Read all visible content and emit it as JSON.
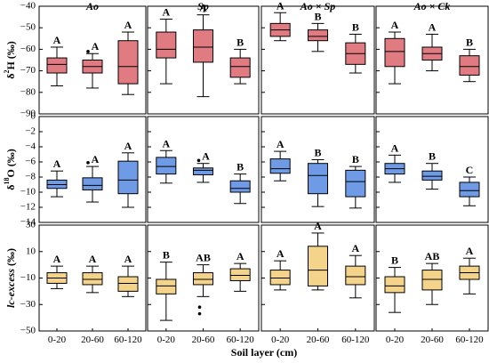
{
  "chart_data": {
    "type": "boxplot",
    "columns": [
      {
        "title": "Ao",
        "title_parts": [
          {
            "t": "Ao",
            "it": true
          }
        ]
      },
      {
        "title": "Sp",
        "title_parts": [
          {
            "t": "Sp",
            "it": true
          }
        ]
      },
      {
        "title": "Ao × Sp",
        "title_parts": [
          {
            "t": "Ao",
            "it": true
          },
          {
            "t": " × ",
            "it": false
          },
          {
            "t": "Sp",
            "it": true
          }
        ]
      },
      {
        "title": "Ao × Ck",
        "title_parts": [
          {
            "t": "Ao",
            "it": true
          },
          {
            "t": " × ",
            "it": false
          },
          {
            "t": "Ck",
            "it": true
          }
        ]
      }
    ],
    "categories": [
      "0-20",
      "20-60",
      "60-120"
    ],
    "xlabel": "Soil layer (cm)",
    "rows": [
      {
        "ylabel": "δ²H (‰)",
        "ylabel_parts": [
          {
            "t": "δ",
            "sup": false
          },
          {
            "t": "2",
            "sup": true
          },
          {
            "t": "H (‰)",
            "sup": false
          }
        ],
        "ylim": [
          -90,
          -40
        ],
        "ticks": [
          -90,
          -80,
          -70,
          -60,
          -50,
          -40
        ],
        "color": "#e07b82",
        "panels": [
          [
            {
              "whisker_low": -77,
              "q1": -71,
              "median": -67,
              "q3": -64,
              "whisker_high": -59,
              "sig": "A",
              "outliers": []
            },
            {
              "whisker_low": -78,
              "q1": -71,
              "median": -68,
              "q3": -65,
              "whisker_high": -62,
              "sig": "A",
              "outliers": [
                -61
              ]
            },
            {
              "whisker_low": -81,
              "q1": -76,
              "median": -68,
              "q3": -56,
              "whisker_high": -52,
              "sig": "A",
              "outliers": []
            }
          ],
          [
            {
              "whisker_low": -76,
              "q1": -64,
              "median": -60,
              "q3": -52,
              "whisker_high": -46,
              "sig": "A",
              "outliers": []
            },
            {
              "whisker_low": -82,
              "q1": -66,
              "median": -59,
              "q3": -51,
              "whisker_high": -44,
              "sig": "A",
              "outliers": []
            },
            {
              "whisker_low": -76,
              "q1": -73,
              "median": -68,
              "q3": -64,
              "whisker_high": -60,
              "sig": "B",
              "outliers": []
            }
          ],
          [
            {
              "whisker_low": -56,
              "q1": -54,
              "median": -51,
              "q3": -48,
              "whisker_high": -43,
              "sig": "A",
              "outliers": []
            },
            {
              "whisker_low": -61,
              "q1": -56,
              "median": -54,
              "q3": -51,
              "whisker_high": -48,
              "sig": "B",
              "outliers": []
            },
            {
              "whisker_low": -71,
              "q1": -67,
              "median": -62,
              "q3": -57,
              "whisker_high": -53,
              "sig": "B",
              "outliers": []
            }
          ],
          [
            {
              "whisker_low": -76,
              "q1": -68,
              "median": -61,
              "q3": -55,
              "whisker_high": -52,
              "sig": "A",
              "outliers": []
            },
            {
              "whisker_low": -70,
              "q1": -65,
              "median": -62,
              "q3": -59,
              "whisker_high": -53,
              "sig": "A",
              "outliers": []
            },
            {
              "whisker_low": -75,
              "q1": -72,
              "median": -68,
              "q3": -63,
              "whisker_high": -60,
              "sig": "B",
              "outliers": []
            }
          ]
        ]
      },
      {
        "ylabel": "δ¹⁸O (‰)",
        "ylabel_parts": [
          {
            "t": "δ",
            "sup": false
          },
          {
            "t": "18",
            "sup": true
          },
          {
            "t": "O (‰)",
            "sup": false
          }
        ],
        "ylim": [
          -14,
          0
        ],
        "ticks": [
          -14,
          -12,
          -10,
          -8,
          -6,
          -4,
          -2,
          0
        ],
        "color": "#6f9be6",
        "panels": [
          [
            {
              "whisker_low": -10.6,
              "q1": -9.5,
              "median": -9.0,
              "q3": -8.4,
              "whisker_high": -7.2,
              "sig": "A",
              "outliers": []
            },
            {
              "whisker_low": -11.3,
              "q1": -9.7,
              "median": -9.1,
              "q3": -8.1,
              "whisker_high": -6.6,
              "sig": "A",
              "outliers": [
                -6.1
              ]
            },
            {
              "whisker_low": -12.0,
              "q1": -10.2,
              "median": -8.4,
              "q3": -5.9,
              "whisker_high": -4.8,
              "sig": "A",
              "outliers": []
            }
          ],
          [
            {
              "whisker_low": -8.8,
              "q1": -7.6,
              "median": -6.6,
              "q3": -5.4,
              "whisker_high": -4.5,
              "sig": "A",
              "outliers": []
            },
            {
              "whisker_low": -8.7,
              "q1": -7.7,
              "median": -7.1,
              "q3": -6.8,
              "whisker_high": -6.2,
              "sig": "A",
              "outliers": [
                -5.8
              ]
            },
            {
              "whisker_low": -11.5,
              "q1": -10.0,
              "median": -9.5,
              "q3": -8.5,
              "whisker_high": -7.6,
              "sig": "B",
              "outliers": []
            }
          ],
          [
            {
              "whisker_low": -8.5,
              "q1": -7.5,
              "median": -6.9,
              "q3": -5.6,
              "whisker_high": -4.6,
              "sig": "A",
              "outliers": []
            },
            {
              "whisker_low": -11.9,
              "q1": -10.2,
              "median": -7.8,
              "q3": -6.2,
              "whisker_high": -5.7,
              "sig": "B",
              "outliers": []
            },
            {
              "whisker_low": -12.1,
              "q1": -10.6,
              "median": -8.6,
              "q3": -7.1,
              "whisker_high": -6.6,
              "sig": "B",
              "outliers": []
            }
          ],
          [
            {
              "whisker_low": -8.7,
              "q1": -7.6,
              "median": -6.9,
              "q3": -6.2,
              "whisker_high": -5.1,
              "sig": "A",
              "outliers": []
            },
            {
              "whisker_low": -9.6,
              "q1": -8.4,
              "median": -7.9,
              "q3": -7.2,
              "whisker_high": -6.2,
              "sig": "B",
              "outliers": []
            },
            {
              "whisker_low": -11.8,
              "q1": -10.6,
              "median": -9.8,
              "q3": -8.7,
              "whisker_high": -8.0,
              "sig": "C",
              "outliers": []
            }
          ]
        ]
      },
      {
        "ylabel": "lc-excess (‰)",
        "ylabel_parts": [
          {
            "t": "lc-excess",
            "it": true
          },
          {
            "t": " (‰)",
            "it": false
          }
        ],
        "ylim": [
          -50,
          30
        ],
        "ticks": [
          -50,
          -30,
          -10,
          10,
          30
        ],
        "color": "#f4d38a",
        "panels": [
          [
            {
              "whisker_low": -18,
              "q1": -14,
              "median": -10,
              "q3": -6,
              "whisker_high": -1,
              "sig": "A",
              "outliers": []
            },
            {
              "whisker_low": -21,
              "q1": -15,
              "median": -11,
              "q3": -6,
              "whisker_high": -1,
              "sig": "A",
              "outliers": []
            },
            {
              "whisker_low": -24,
              "q1": -20,
              "median": -14,
              "q3": -9,
              "whisker_high": -1,
              "sig": "A",
              "outliers": []
            }
          ],
          [
            {
              "whisker_low": -42,
              "q1": -22,
              "median": -16,
              "q3": -11,
              "whisker_high": 2,
              "sig": "B",
              "outliers": []
            },
            {
              "whisker_low": -24,
              "q1": -15,
              "median": -11,
              "q3": -6,
              "whisker_high": 0,
              "sig": "AB",
              "outliers": [
                -32,
                -37
              ]
            },
            {
              "whisker_low": -20,
              "q1": -12,
              "median": -8,
              "q3": -3,
              "whisker_high": 1,
              "sig": "A",
              "outliers": []
            }
          ],
          [
            {
              "whisker_low": -19,
              "q1": -15,
              "median": -10,
              "q3": -4,
              "whisker_high": 3,
              "sig": "A",
              "outliers": []
            },
            {
              "whisker_low": -19,
              "q1": -16,
              "median": -4,
              "q3": 14,
              "whisker_high": 24,
              "sig": "A",
              "outliers": []
            },
            {
              "whisker_low": -25,
              "q1": -15,
              "median": -9,
              "q3": -1,
              "whisker_high": 7,
              "sig": "A",
              "outliers": []
            }
          ],
          [
            {
              "whisker_low": -36,
              "q1": -21,
              "median": -16,
              "q3": -9,
              "whisker_high": -2,
              "sig": "B",
              "outliers": []
            },
            {
              "whisker_low": -30,
              "q1": -19,
              "median": -11,
              "q3": -4,
              "whisker_high": 1,
              "sig": "AB",
              "outliers": []
            },
            {
              "whisker_low": -22,
              "q1": -11,
              "median": -6,
              "q3": -1,
              "whisker_high": 5,
              "sig": "A",
              "outliers": []
            }
          ]
        ]
      }
    ]
  }
}
